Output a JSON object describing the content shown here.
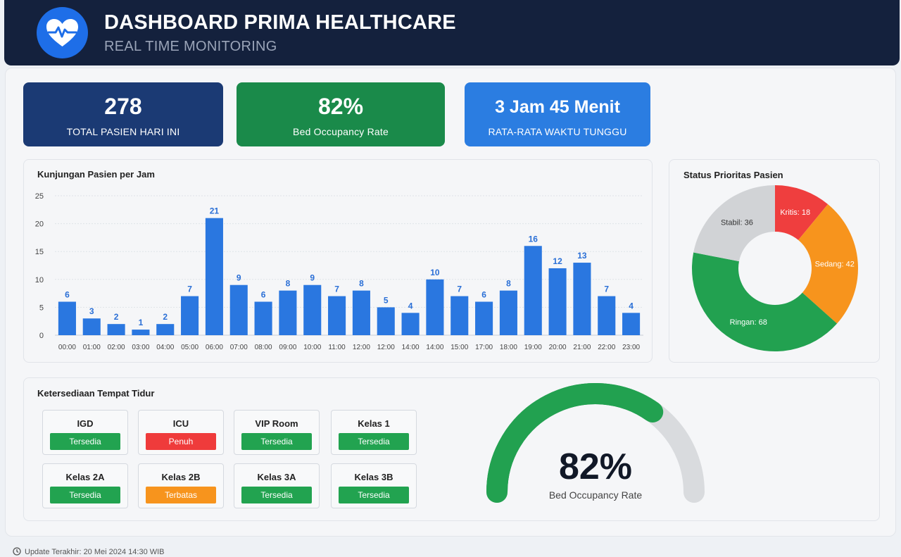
{
  "header": {
    "title": "DASHBOARD PRIMA HEALTHCARE",
    "subtitle": "REAL TIME MONITORING",
    "logo_icon": "heart-pulse-icon"
  },
  "kpis": [
    {
      "value": "278",
      "label": "TOTAL PASIEN HARI INI",
      "color": "#1b3a74"
    },
    {
      "value": "82%",
      "label": "Bed Occupancy Rate",
      "color": "#1a8a4a"
    },
    {
      "value": "3 Jam 45 Menit",
      "label": "RATA-RATA WAKTU TUNGGU",
      "color": "#2b7de1"
    }
  ],
  "bar_card": {
    "title": "Kunjungan Pasien per Jam"
  },
  "donut_card": {
    "title": "Status Prioritas Pasien"
  },
  "beds_card": {
    "title": "Ketersediaan Tempat Tidur"
  },
  "beds": [
    {
      "name": "IGD",
      "status": "Tersedia",
      "color": "#22a350"
    },
    {
      "name": "ICU",
      "status": "Penuh",
      "color": "#ef3b3b"
    },
    {
      "name": "VIP Room",
      "status": "Tersedia",
      "color": "#22a350"
    },
    {
      "name": "Kelas 1",
      "status": "Tersedia",
      "color": "#22a350"
    },
    {
      "name": "Kelas 2A",
      "status": "Tersedia",
      "color": "#22a350"
    },
    {
      "name": "Kelas 2B",
      "status": "Terbatas",
      "color": "#f7941d"
    },
    {
      "name": "Kelas 3A",
      "status": "Tersedia",
      "color": "#22a350"
    },
    {
      "name": "Kelas 3B",
      "status": "Tersedia",
      "color": "#22a350"
    }
  ],
  "gauge": {
    "value_text": "82%",
    "label": "Bed Occupancy Rate"
  },
  "footer": {
    "text": "Update Terakhir: 20 Mei 2024 14:30 WIB",
    "icon": "clock-icon"
  },
  "chart_data": [
    {
      "type": "bar",
      "title": "Kunjungan Pasien per Jam",
      "categories": [
        "00:00",
        "01:00",
        "02:00",
        "03:00",
        "04:00",
        "05:00",
        "06:00",
        "07:00",
        "08:00",
        "09:00",
        "10:00",
        "11:00",
        "12:00",
        "12:00",
        "14:00",
        "14:00",
        "15:00",
        "17:00",
        "18:00",
        "19:00",
        "20:00",
        "21:00",
        "22:00",
        "23:00"
      ],
      "values": [
        6,
        3,
        2,
        1,
        2,
        7,
        21,
        9,
        6,
        8,
        9,
        7,
        8,
        5,
        4,
        10,
        7,
        6,
        8,
        16,
        12,
        13,
        7,
        4
      ],
      "ylim": [
        0,
        25
      ],
      "yticks": [
        0,
        5,
        10,
        15,
        20,
        25
      ],
      "grid": true,
      "color": "#2a77e0"
    },
    {
      "type": "pie",
      "title": "Status Prioritas Pasien",
      "slices": [
        {
          "label": "Kritis",
          "value": 18,
          "color": "#ef3e3e"
        },
        {
          "label": "Sedang",
          "value": 42,
          "color": "#f7941d"
        },
        {
          "label": "Ringan",
          "value": 68,
          "color": "#22a150"
        },
        {
          "label": "Stabil",
          "value": 36,
          "color": "#d1d3d6"
        }
      ],
      "slice_text": [
        "Kritis: 18",
        "Sedang: 42",
        "Ringan: 68",
        "Stabil: 36"
      ]
    },
    {
      "type": "gauge",
      "value": 82,
      "max": 100,
      "fill_color": "#22a150",
      "track_color": "#d9dbde"
    }
  ]
}
